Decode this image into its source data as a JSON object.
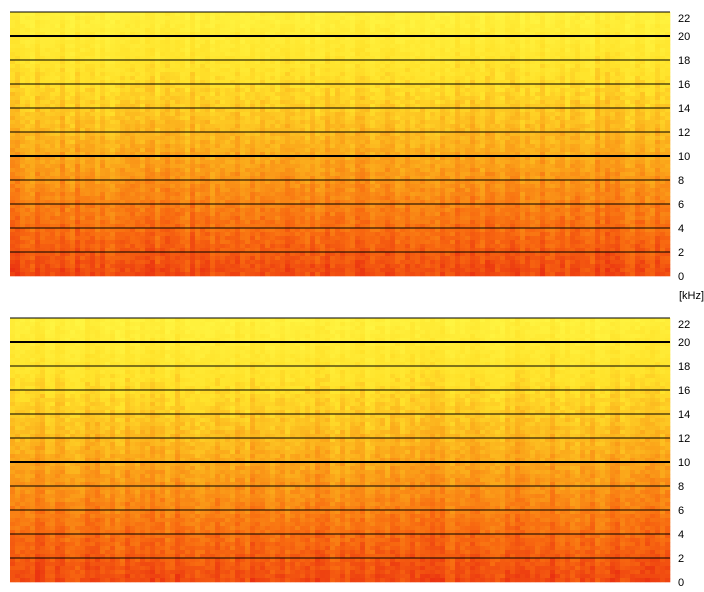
{
  "chart_data": [
    {
      "type": "heatmap",
      "title": "",
      "xlabel": "",
      "ylabel": "[kHz]",
      "ylim": [
        0,
        22
      ],
      "yticks": [
        0,
        2,
        4,
        6,
        8,
        10,
        12,
        14,
        16,
        18,
        20,
        22
      ],
      "ytick_labels": [
        "0",
        "2",
        "4",
        "6",
        "8",
        "10",
        "12",
        "14",
        "16",
        "18",
        "20",
        "22"
      ],
      "emphasized_lines": [
        10,
        20
      ],
      "grid": true,
      "colormap": [
        "#e82a10",
        "#f86a10",
        "#fba81a",
        "#ffe22a",
        "#fff440"
      ],
      "description_values": "intensity decreases with frequency: bottom red, top yellow"
    },
    {
      "type": "heatmap",
      "title": "",
      "xlabel": "",
      "ylabel": "[kHz]",
      "ylim": [
        0,
        22
      ],
      "yticks": [
        0,
        2,
        4,
        6,
        8,
        10,
        12,
        14,
        16,
        18,
        20,
        22
      ],
      "ytick_labels": [
        "0",
        "2",
        "4",
        "6",
        "8",
        "10",
        "12",
        "14",
        "16",
        "18",
        "20",
        "22"
      ],
      "emphasized_lines": [
        10,
        20
      ],
      "grid": true,
      "colormap": [
        "#e82a10",
        "#f86a10",
        "#fba81a",
        "#ffe22a",
        "#fff440"
      ],
      "description_values": "intensity decreases with frequency: bottom red, top yellow"
    }
  ],
  "axis_unit_label": "[kHz]"
}
